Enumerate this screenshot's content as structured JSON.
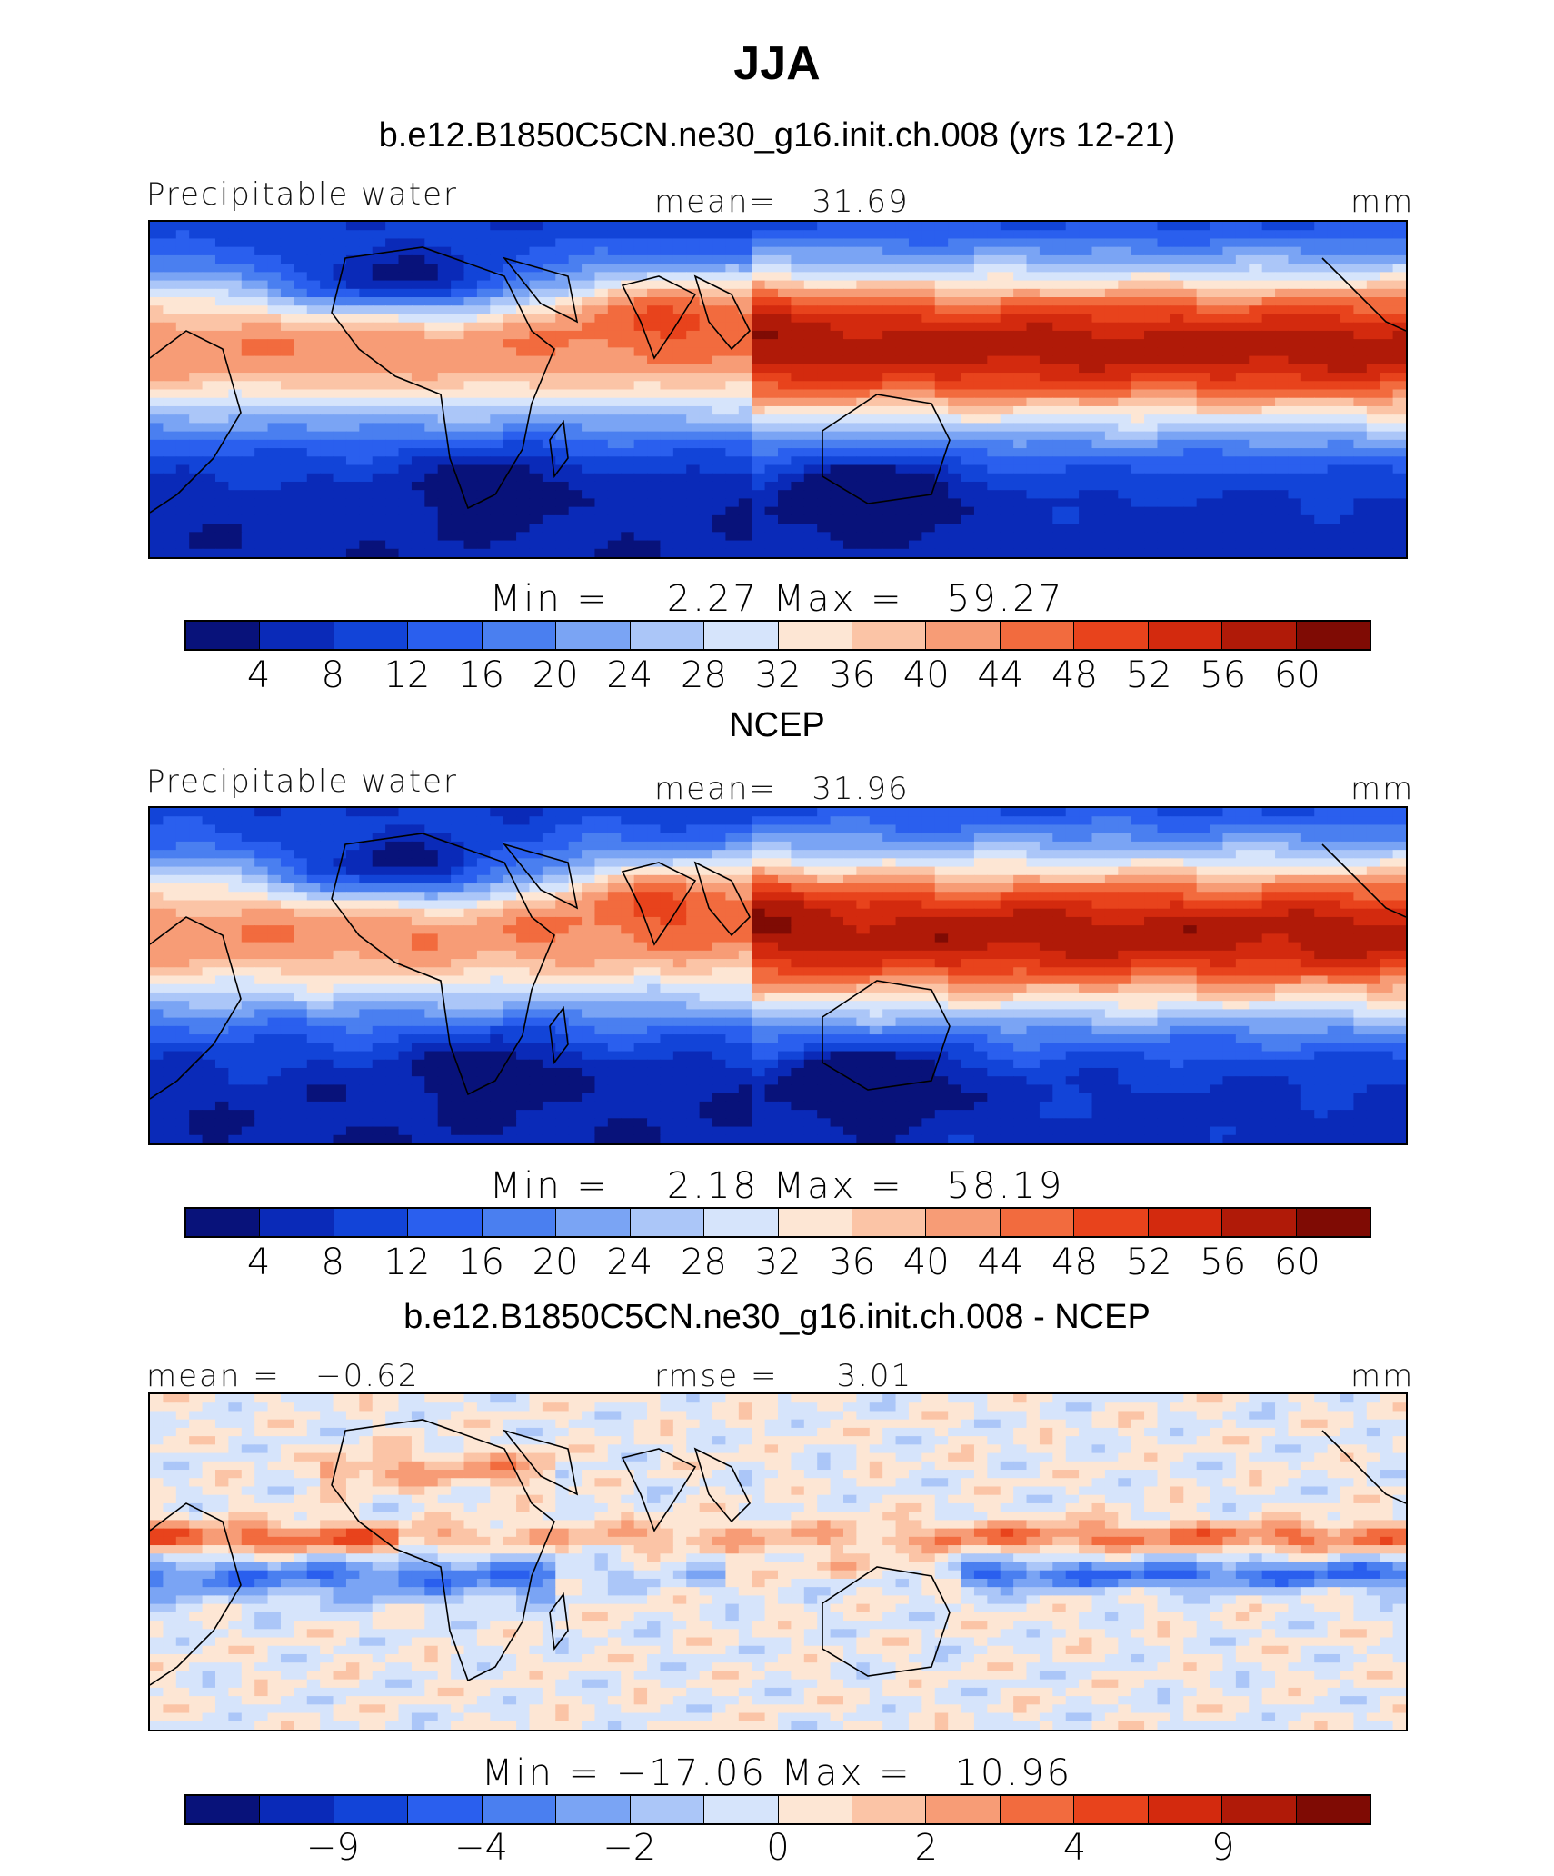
{
  "title": "JJA",
  "units": "mm",
  "palette": [
    "#08127a",
    "#0a2ab8",
    "#1244d8",
    "#2a5fee",
    "#4a7ff0",
    "#7aa4f4",
    "#abc6f8",
    "#d6e4fb",
    "#fde6d4",
    "#fbc4a6",
    "#f79c76",
    "#f26b3e",
    "#e8431c",
    "#d32a0e",
    "#b01a08",
    "#7f0b04"
  ],
  "panels": [
    {
      "title": "b.e12.B1850C5CN.ne30_g16.init.ch.008 (yrs 12-21)",
      "left_label": "Precipitable water",
      "center_label": "mean=   31.69",
      "right_label": "mm",
      "minmax": "Min =    2.27 Max =   59.27",
      "tick_labels": [
        "4",
        "8",
        "12",
        "16",
        "20",
        "24",
        "28",
        "32",
        "36",
        "40",
        "44",
        "48",
        "52",
        "56",
        "60"
      ],
      "stats": {
        "mean": 31.69,
        "min": 2.27,
        "max": 59.27
      },
      "field": "model"
    },
    {
      "title": "NCEP",
      "left_label": "Precipitable water",
      "center_label": "mean=   31.96",
      "right_label": "mm",
      "minmax": "Min =    2.18 Max =   58.19",
      "tick_labels": [
        "4",
        "8",
        "12",
        "16",
        "20",
        "24",
        "28",
        "32",
        "36",
        "40",
        "44",
        "48",
        "52",
        "56",
        "60"
      ],
      "stats": {
        "mean": 31.96,
        "min": 2.18,
        "max": 58.19
      },
      "field": "obs"
    },
    {
      "title": "b.e12.B1850C5CN.ne30_g16.init.ch.008 - NCEP",
      "left_label": "mean =   −0.62",
      "center_label": "rmse =     3.01",
      "right_label": "mm",
      "minmax": "Min = −17.06 Max =   10.96",
      "tick_labels": [
        "−9",
        "−4",
        "−2",
        "0",
        "2",
        "4",
        "9"
      ],
      "stats": {
        "mean": -0.62,
        "rmse": 3.01,
        "min": -17.06,
        "max": 10.96
      },
      "field": "diff"
    }
  ]
}
